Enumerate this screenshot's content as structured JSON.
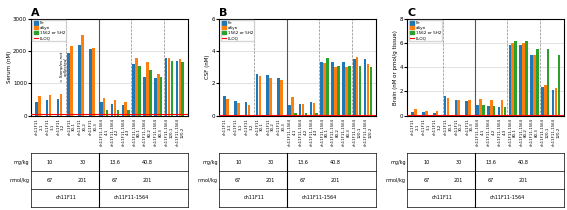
{
  "chart_data": [
    {
      "type": "bar",
      "title": "A",
      "y_label": "Serum (nM)",
      "categories": [
        "ch11F11\n2-1",
        "ch11F11\n3-1",
        "ch11F11\n3-2",
        "ch11F11\n30-1",
        "ch11F11\n30-2",
        "ch11F11\n30-3",
        "ch11F11-1564\n4-1",
        "ch11F11-1564\n4-2",
        "ch11F11-1564\n4-3",
        "ch11F11-1564\n80-1",
        "ch11F11-1564\n80-2",
        "ch11F11-1564\n80-3",
        "ch11F11-1564\n120-1",
        "ch11F11-1564\n120-2"
      ],
      "series": [
        {
          "name": "Fe",
          "values": [
            430,
            490,
            510,
            1950,
            2200,
            2050,
            420,
            350,
            330,
            1600,
            1200,
            1150,
            1800,
            1700
          ]
        },
        {
          "name": "aSyn",
          "values": [
            600,
            650,
            680,
            2150,
            2500,
            2100,
            550,
            480,
            420,
            1800,
            1650,
            1300,
            1800,
            1750
          ]
        },
        {
          "name": "1562 or 5H2",
          "values": [
            null,
            null,
            null,
            null,
            null,
            null,
            170,
            160,
            160,
            1550,
            1400,
            1200,
            1700,
            1650
          ]
        }
      ],
      "ylim": [
        0,
        3000
      ],
      "yticks": [
        0,
        1000,
        2000,
        3000
      ],
      "grid": true,
      "legend": "upper left",
      "reference_line": {
        "value": 50,
        "label": "LLOQ",
        "color": "#ff0000"
      },
      "annotations": [
        {
          "text": "< Samples not\ncollected"
        }
      ],
      "table": {
        "rows": [
          {
            "label": "mg/kg",
            "values": [
              10,
              30,
              13.6,
              40.8
            ]
          },
          {
            "label": "nmol/kg",
            "values": [
              67,
              201,
              67,
              201
            ]
          }
        ],
        "groups": [
          "ch11F11",
          "ch11F11-1564"
        ]
      }
    },
    {
      "type": "bar",
      "title": "B",
      "y_label": "CSF (nM)",
      "categories": [
        "ch11F11\n2-1",
        "ch11F11\n3-1",
        "ch11F11\n3-2",
        "ch11F11\n30-1",
        "ch11F11\n30-2",
        "ch11F11\n30-3",
        "ch11F11-1564\n4-1",
        "ch11F11-1564\n4-2",
        "ch11F11-1564\n4-3",
        "ch11F11-1564\n80-1",
        "ch11F11-1564\n80-2",
        "ch11F11-1564\n80-3",
        "ch11F11-1564\n120-1",
        "ch11F11-1564\n120-2"
      ],
      "series": [
        {
          "name": "Fe",
          "values": [
            1.2,
            0.9,
            0.85,
            2.6,
            2.5,
            2.3,
            0.65,
            0.7,
            0.85,
            3.35,
            3.35,
            3.35,
            3.5,
            3.5
          ]
        },
        {
          "name": "aSyn",
          "values": [
            1.05,
            0.75,
            0.65,
            2.45,
            2.3,
            2.2,
            1.15,
            0.7,
            0.8,
            3.25,
            3.0,
            3.0,
            3.65,
            3.2
          ]
        },
        {
          "name": "1562 or 5H2",
          "values": [
            null,
            null,
            null,
            null,
            null,
            null,
            0.15,
            0.15,
            0.15,
            3.6,
            3.1,
            3.1,
            3.1,
            3.0
          ]
        }
      ],
      "ylim": [
        0,
        6
      ],
      "yticks": [
        0,
        2,
        4,
        6
      ],
      "grid": true,
      "legend": "upper left",
      "reference_line": {
        "value": 0.05,
        "label": "LLOQ",
        "color": "#ff0000"
      },
      "table": {
        "rows": [
          {
            "label": "mg/kg",
            "values": [
              10,
              30,
              13.6,
              40.8
            ]
          },
          {
            "label": "nmol/kg",
            "values": [
              67,
              201,
              67,
              201
            ]
          }
        ],
        "groups": [
          "ch11F11",
          "ch11F11-1564"
        ]
      }
    },
    {
      "type": "bar",
      "title": "C",
      "y_label": "Brain (nM or pmol/g tissue)",
      "categories": [
        "ch11F11\n2-1",
        "ch11F11\n3-1",
        "ch11F11\n3-2",
        "ch11F11\n30-1",
        "ch11F11\n30-2",
        "ch11F11\n30-3",
        "ch11F11-1564\n4-1",
        "ch11F11-1564\n4-2",
        "ch11F11-1564\n4-3",
        "ch11F11-1564\n80-1",
        "ch11F11-1564\n80-2",
        "ch11F11-1564\n80-3",
        "ch11F11-1564\n120-1",
        "ch11F11-1564\n120-2"
      ],
      "series": [
        {
          "name": "Fe",
          "values": [
            0.3,
            0.25,
            0.22,
            1.6,
            1.3,
            1.2,
            0.85,
            0.75,
            0.7,
            5.8,
            5.8,
            5.0,
            2.4,
            2.1
          ]
        },
        {
          "name": "aSyn",
          "values": [
            0.5,
            0.4,
            0.38,
            1.45,
            1.25,
            1.25,
            1.4,
            1.3,
            1.25,
            6.0,
            6.0,
            5.0,
            2.5,
            2.3
          ]
        },
        {
          "name": "1562 or 5H2",
          "values": [
            null,
            null,
            null,
            null,
            null,
            null,
            0.85,
            0.75,
            0.7,
            6.2,
            6.2,
            5.5,
            5.5,
            5.0
          ]
        }
      ],
      "ylim": [
        0,
        8
      ],
      "yticks": [
        0,
        2,
        4,
        6,
        8
      ],
      "grid": true,
      "legend": "upper left",
      "reference_line": {
        "value": 0.05,
        "label": "LLOQ",
        "color": "#ff0000"
      },
      "table": {
        "rows": [
          {
            "label": "mg/kg",
            "values": [
              10,
              30,
              13.6,
              40.8
            ]
          },
          {
            "label": "nmol/kg",
            "values": [
              67,
              201,
              67,
              201
            ]
          }
        ],
        "groups": [
          "ch11F11",
          "ch11F11-1564"
        ]
      }
    }
  ]
}
